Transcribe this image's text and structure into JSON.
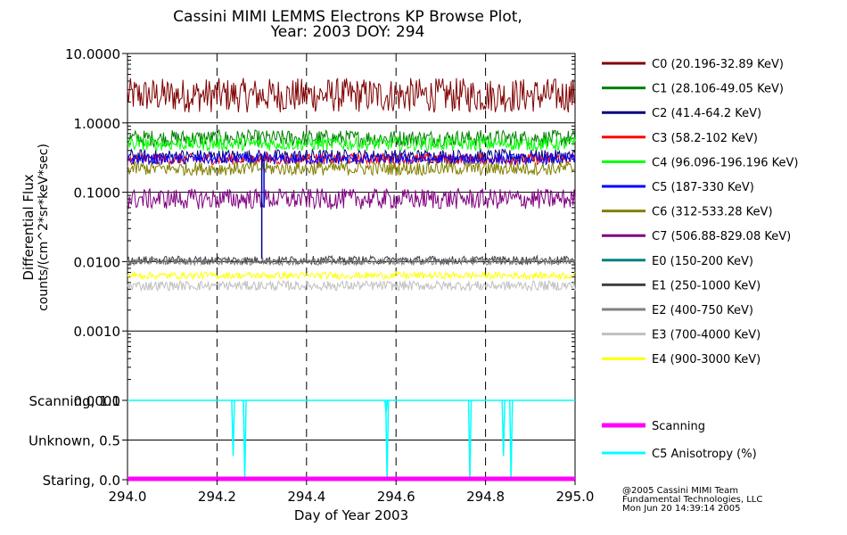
{
  "chart_data": [
    {
      "type": "line",
      "title": "Cassini MIMI LEMMS Electrons KP Browse Plot,",
      "subtitle": "Year: 2003 DOY: 294",
      "ylabel": "Differential Flux",
      "ylabel2": "counts/(cm^2*sr*keV*sec)",
      "yscale": "log",
      "ylim": [
        0.0001,
        10.0
      ],
      "yticks": [
        "10.0000",
        "1.0000",
        "0.1000",
        "0.0100",
        "0.0010",
        "0.0001"
      ],
      "xlim": [
        294.0,
        295.0
      ],
      "legend_position": "right",
      "series": [
        {
          "name": "C0 (20.196-32.89 KeV)",
          "color": "#800000",
          "level": 2.5,
          "spread": 0.25
        },
        {
          "name": "C1 (28.106-49.05 KeV)",
          "color": "#008000",
          "level": 0.6,
          "spread": 0.12
        },
        {
          "name": "C2 (41.4-64.2 KeV)",
          "color": "#000080",
          "level": 0.33,
          "spread": 0.1
        },
        {
          "name": "C3 (58.2-102 KeV)",
          "color": "#ff0000",
          "level": 0.3,
          "spread": 0.08
        },
        {
          "name": "C4 (96.096-196.196 KeV)",
          "color": "#00ff00",
          "level": 0.5,
          "spread": 0.1
        },
        {
          "name": "C5 (187-330 KeV)",
          "color": "#0000ff",
          "level": 0.3,
          "spread": 0.08
        },
        {
          "name": "C6 (312-533.28 KeV)",
          "color": "#808000",
          "level": 0.22,
          "spread": 0.1
        },
        {
          "name": "C7 (506.88-829.08 KeV)",
          "color": "#800080",
          "level": 0.08,
          "spread": 0.15
        },
        {
          "name": "E0 (150-200 KeV)",
          "color": "#008080",
          "level": null,
          "spread": 0
        },
        {
          "name": "E1 (250-1000 KeV)",
          "color": "#404040",
          "level": 0.0105,
          "spread": 0.06
        },
        {
          "name": "E2 (400-750 KeV)",
          "color": "#808080",
          "level": 0.01,
          "spread": 0.05
        },
        {
          "name": "E3 (700-4000 KeV)",
          "color": "#c0c0c0",
          "level": 0.0045,
          "spread": 0.07
        },
        {
          "name": "E4 (900-3000 KeV)",
          "color": "#ffff00",
          "level": 0.0063,
          "spread": 0.05
        }
      ],
      "spikes": [
        {
          "series": "C2 (41.4-64.2 KeV)",
          "x": 294.3,
          "to": 0.011
        },
        {
          "series": "C5 (187-330 KeV)",
          "x": 294.305,
          "to": 0.06
        }
      ]
    },
    {
      "type": "line",
      "xlabel": "Day of Year 2003",
      "xlim": [
        294.0,
        295.0
      ],
      "xticks": [
        "294.0",
        "294.2",
        "294.4",
        "294.6",
        "294.8",
        "295.0"
      ],
      "ylim": [
        0.0,
        1.0
      ],
      "yticks": [
        "Scanning, 1.0",
        "Unknown, 0.5",
        "Staring, 0.0"
      ],
      "legend_position": "right",
      "series": [
        {
          "name": "Scanning",
          "color": "#ff00ff",
          "value": 0.0
        },
        {
          "name": "C5 Anisotropy (%)",
          "color": "#00ffff",
          "value": 1.0
        }
      ],
      "anisotropy_dips": [
        {
          "x": 294.236,
          "to": 0.3
        },
        {
          "x": 294.262,
          "to": 0.0
        },
        {
          "x": 294.578,
          "to": 0.85
        },
        {
          "x": 294.58,
          "to": 0.0
        },
        {
          "x": 294.765,
          "to": 0.0
        },
        {
          "x": 294.84,
          "to": 0.3
        },
        {
          "x": 294.857,
          "to": 0.0
        }
      ]
    }
  ],
  "credits": {
    "line1": "@2005 Cassini MIMI Team",
    "line2": "Fundamental Technologies, LLC",
    "line3": "Mon Jun 20 14:39:14 2005"
  }
}
